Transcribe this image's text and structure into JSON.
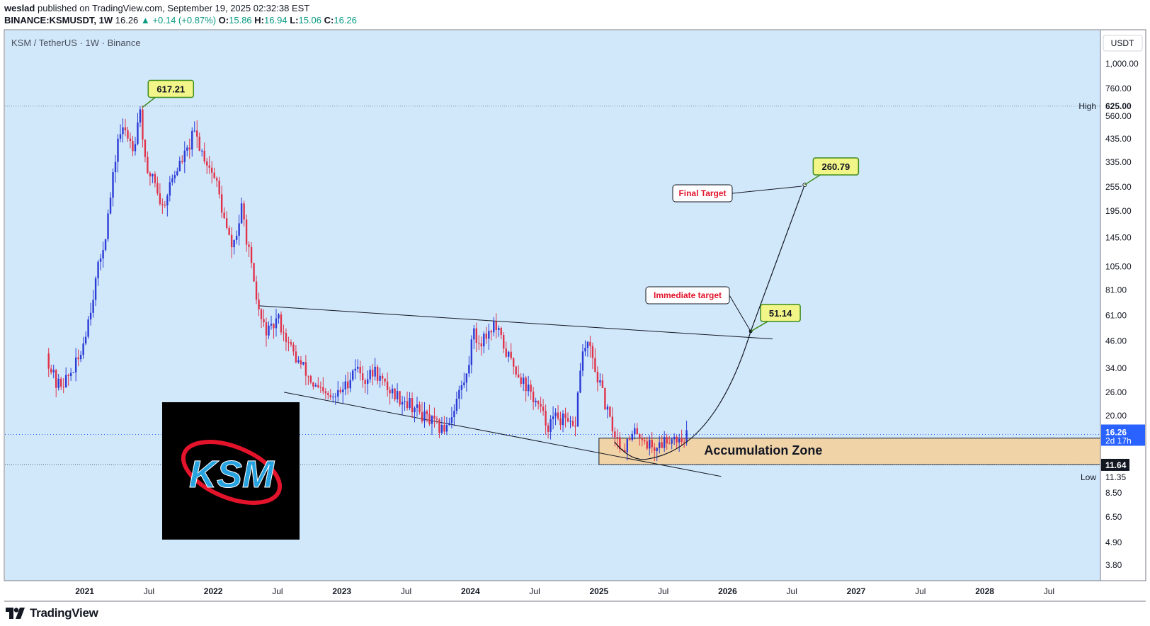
{
  "header": {
    "author": "weslad",
    "published_text": "published on TradingView.com, September 19, 2025 02:32:38 EST",
    "symbol": "BINANCE:KSMUSDT, 1W",
    "last": "16.26",
    "change": "+0.14 (+0.87%)",
    "o_label": "O:",
    "o": "15.86",
    "h_label": "H:",
    "h": "16.94",
    "l_label": "L:",
    "l": "15.06",
    "c_label": "C:",
    "c": "16.26"
  },
  "footer": {
    "brand": "TradingView"
  },
  "colors": {
    "background": "#d1e8fb",
    "up": "#2a3bd6",
    "down": "#e0334a",
    "label_bg": "#f2f588",
    "label_border": "#3f8c1c",
    "zone_fill": "#f1d3a8",
    "text": "#131722",
    "red_text": "#e3132b"
  },
  "chart_data": {
    "type": "candlestick",
    "title": "KSM / TetherUS · 1W · Binance",
    "currency": "USDT",
    "y_scale": "log",
    "ylim": [
      3.2,
      1450
    ],
    "y_ticks": [
      "1,000.00",
      "760.00",
      "625.00",
      "560.00",
      "435.00",
      "335.00",
      "255.00",
      "195.00",
      "145.00",
      "105.00",
      "81.00",
      "61.00",
      "46.00",
      "34.00",
      "26.00",
      "20.00",
      "16.26",
      "11.64",
      "11.35",
      "8.50",
      "6.50",
      "4.90",
      "3.80"
    ],
    "y_tick_values": [
      1000,
      760,
      625,
      560,
      435,
      335,
      255,
      195,
      145,
      105,
      81,
      61,
      46,
      34,
      26,
      20,
      16.26,
      11.64,
      11.35,
      8.5,
      6.5,
      4.9,
      3.8
    ],
    "x_ticks": [
      {
        "label": "2021",
        "date": 2021.0,
        "bold": true
      },
      {
        "label": "Jul",
        "date": 2021.5,
        "bold": false
      },
      {
        "label": "2022",
        "date": 2022.0,
        "bold": true
      },
      {
        "label": "Jul",
        "date": 2022.5,
        "bold": false
      },
      {
        "label": "2023",
        "date": 2023.0,
        "bold": true
      },
      {
        "label": "Jul",
        "date": 2023.5,
        "bold": false
      },
      {
        "label": "2024",
        "date": 2024.0,
        "bold": true
      },
      {
        "label": "Jul",
        "date": 2024.5,
        "bold": false
      },
      {
        "label": "2025",
        "date": 2025.0,
        "bold": true
      },
      {
        "label": "Jul",
        "date": 2025.5,
        "bold": false
      },
      {
        "label": "2026",
        "date": 2026.0,
        "bold": true
      },
      {
        "label": "Jul",
        "date": 2026.5,
        "bold": false
      },
      {
        "label": "2027",
        "date": 2027.0,
        "bold": true
      },
      {
        "label": "Jul",
        "date": 2027.5,
        "bold": false
      },
      {
        "label": "2028",
        "date": 2028.0,
        "bold": true
      },
      {
        "label": "Jul",
        "date": 2028.5,
        "bold": false
      }
    ],
    "xlim": [
      2020.38,
      2028.9
    ],
    "price_path": [
      [
        2020.72,
        40
      ],
      [
        2020.8,
        28
      ],
      [
        2020.88,
        30
      ],
      [
        2020.98,
        38
      ],
      [
        2021.05,
        60
      ],
      [
        2021.12,
        100
      ],
      [
        2021.18,
        150
      ],
      [
        2021.23,
        250
      ],
      [
        2021.28,
        450
      ],
      [
        2021.33,
        480
      ],
      [
        2021.4,
        400
      ],
      [
        2021.45,
        617
      ],
      [
        2021.5,
        280
      ],
      [
        2021.55,
        300
      ],
      [
        2021.62,
        200
      ],
      [
        2021.7,
        280
      ],
      [
        2021.76,
        330
      ],
      [
        2021.82,
        380
      ],
      [
        2021.87,
        470
      ],
      [
        2021.93,
        380
      ],
      [
        2022.0,
        310
      ],
      [
        2022.05,
        260
      ],
      [
        2022.1,
        180
      ],
      [
        2022.16,
        130
      ],
      [
        2022.2,
        150
      ],
      [
        2022.24,
        200
      ],
      [
        2022.3,
        120
      ],
      [
        2022.34,
        80
      ],
      [
        2022.4,
        55
      ],
      [
        2022.46,
        50
      ],
      [
        2022.52,
        60
      ],
      [
        2022.6,
        45
      ],
      [
        2022.66,
        38
      ],
      [
        2022.72,
        34
      ],
      [
        2022.8,
        28
      ],
      [
        2022.88,
        25
      ],
      [
        2022.95,
        24
      ],
      [
        2023.05,
        28
      ],
      [
        2023.12,
        35
      ],
      [
        2023.2,
        30
      ],
      [
        2023.28,
        33
      ],
      [
        2023.35,
        28
      ],
      [
        2023.45,
        25
      ],
      [
        2023.55,
        23
      ],
      [
        2023.65,
        20
      ],
      [
        2023.75,
        18
      ],
      [
        2023.8,
        17
      ],
      [
        2023.87,
        20
      ],
      [
        2023.93,
        26
      ],
      [
        2024.0,
        32
      ],
      [
        2024.03,
        52
      ],
      [
        2024.08,
        45
      ],
      [
        2024.15,
        50
      ],
      [
        2024.2,
        55
      ],
      [
        2024.25,
        48
      ],
      [
        2024.3,
        40
      ],
      [
        2024.38,
        33
      ],
      [
        2024.45,
        28
      ],
      [
        2024.5,
        25
      ],
      [
        2024.55,
        22
      ],
      [
        2024.62,
        18
      ],
      [
        2024.7,
        20
      ],
      [
        2024.78,
        18
      ],
      [
        2024.83,
        17
      ],
      [
        2024.88,
        38
      ],
      [
        2024.93,
        45
      ],
      [
        2024.98,
        35
      ],
      [
        2025.05,
        25
      ],
      [
        2025.1,
        19
      ],
      [
        2025.15,
        16
      ],
      [
        2025.2,
        14
      ],
      [
        2025.25,
        15
      ],
      [
        2025.32,
        17
      ],
      [
        2025.38,
        15
      ],
      [
        2025.45,
        14
      ],
      [
        2025.52,
        15
      ],
      [
        2025.58,
        16
      ],
      [
        2025.65,
        15.5
      ],
      [
        2025.7,
        16.26
      ]
    ],
    "annotations": {
      "ath_label": "617.21",
      "ath_value": 617.21,
      "ath_date": 2021.45,
      "high_label": "High",
      "high_value": 625,
      "low_label": "Low",
      "low_value": 11.35,
      "current_price_label": "16.26",
      "current_price_value": 16.26,
      "countdown": "2d 17h",
      "zone_line_label": "11.64",
      "zone_line_value": 11.64,
      "zone_label": "Accumulation Zone",
      "zone": {
        "x0": 2025.0,
        "x1": 2028.9,
        "y0": 11.64,
        "y1": 15.6
      },
      "immediate_target_label": "Immediate target",
      "immediate_target_value_label": "51.14",
      "immediate_target_value": 51.14,
      "immediate_target_date": 2026.18,
      "final_target_label": "Final Target",
      "final_target_value_label": "260.79",
      "final_target_value": 260.79,
      "final_target_date": 2026.6,
      "upper_trendline": [
        [
          2022.35,
          68
        ],
        [
          2026.35,
          47
        ]
      ],
      "lower_trendline": [
        [
          2022.55,
          26
        ],
        [
          2025.95,
          10.2
        ]
      ],
      "logo_text": "KSM"
    }
  }
}
